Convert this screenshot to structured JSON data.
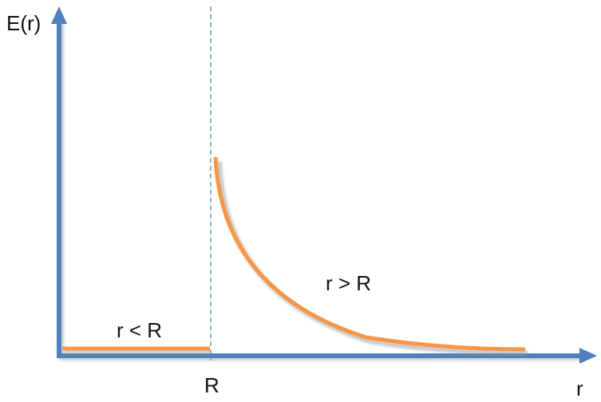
{
  "axes": {
    "y_label": "E(r)",
    "x_label": "r",
    "tick_label": "R"
  },
  "regions": {
    "inside": "r < R",
    "outside": "r > R"
  },
  "colors": {
    "axis": "#4f81bd",
    "curve": "#f79646",
    "shadow": "#bfbfbf",
    "boundary": "#4f81bd"
  }
}
